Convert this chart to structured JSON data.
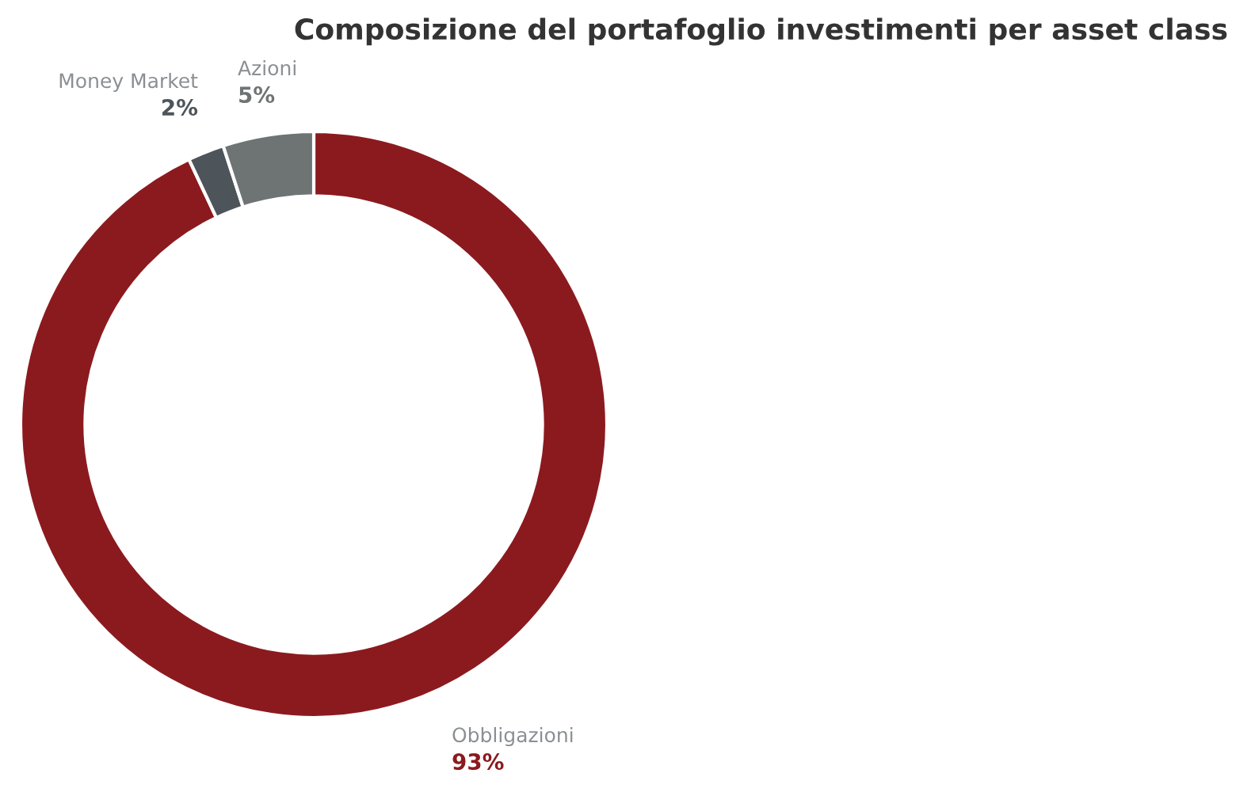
{
  "chart_data": {
    "type": "donut",
    "title": "Composizione del portafoglio investimenti per asset class",
    "categories": [
      "Obbligazioni",
      "Money Market",
      "Azioni"
    ],
    "values": [
      93,
      2,
      5
    ],
    "value_labels": [
      "93%",
      "2%",
      "5%"
    ],
    "colors": [
      "#8b1a1f",
      "#4d545a",
      "#6e7474"
    ]
  }
}
